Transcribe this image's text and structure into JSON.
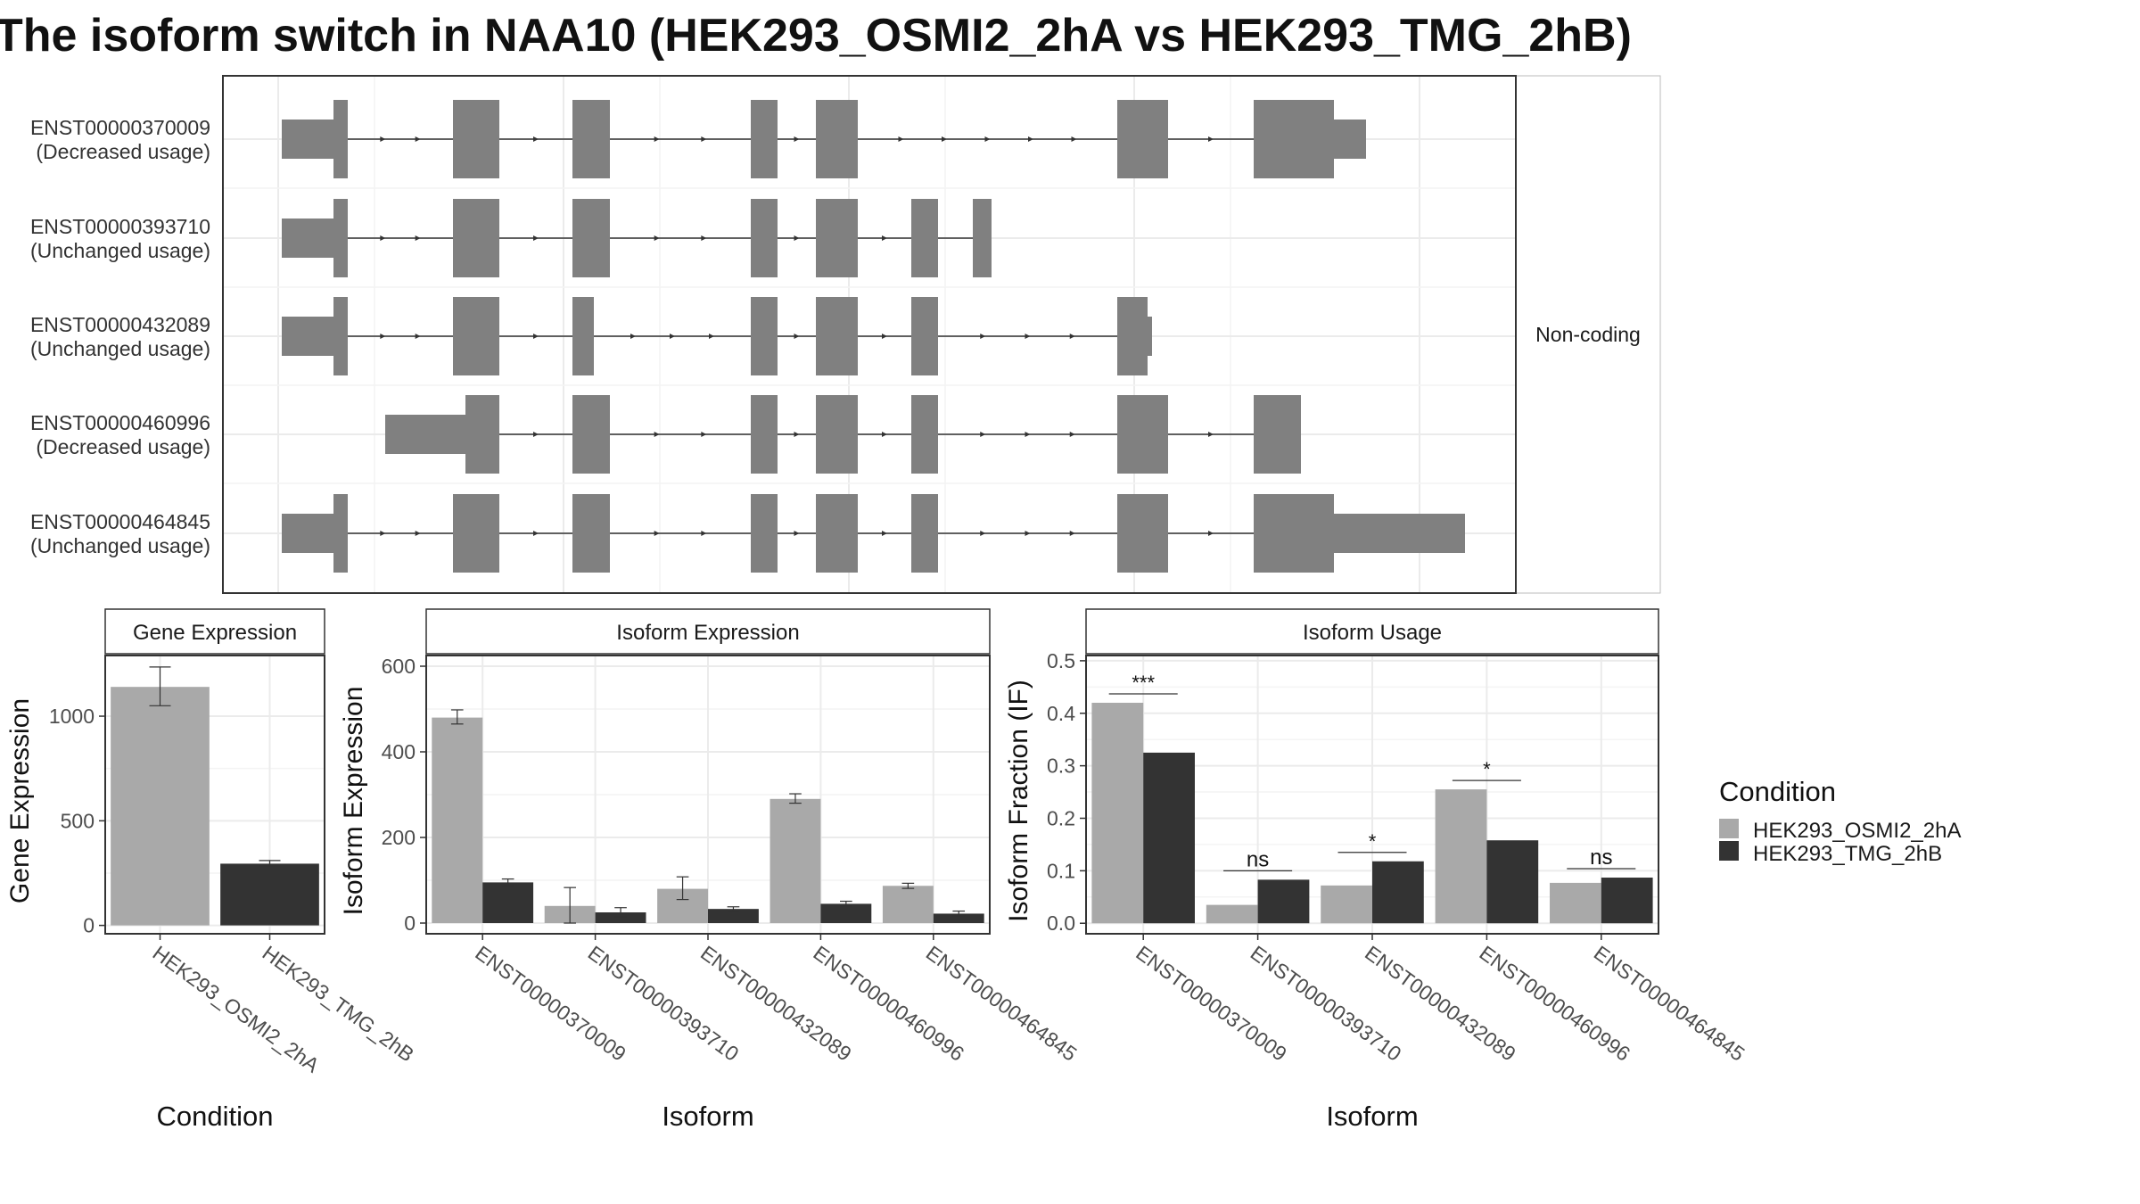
{
  "title": "The isoform switch in NAA10 (HEK293_OSMI2_2hA vs HEK293_TMG_2hB)",
  "colors": {
    "cond_a": "#a9a9a9",
    "cond_b": "#333333",
    "exon": "#808080",
    "grid": "#ebebeb",
    "panel_border": "#333333"
  },
  "chart_data": [
    {
      "type": "gene-structure",
      "strip_label": "Non-coding",
      "transcripts": [
        {
          "id": "ENST00000370009",
          "usage": "(Decreased usage)"
        },
        {
          "id": "ENST00000393710",
          "usage": "(Unchanged usage)"
        },
        {
          "id": "ENST00000432089",
          "usage": "(Unchanged usage)"
        },
        {
          "id": "ENST00000460996",
          "usage": "(Decreased usage)"
        },
        {
          "id": "ENST00000464845",
          "usage": "(Unchanged usage)"
        }
      ]
    },
    {
      "type": "bar",
      "title": "Gene Expression",
      "ylabel": "Gene Expression",
      "xlabel": "Condition",
      "ylim": [
        -40,
        1290
      ],
      "yticks": [
        0,
        500,
        1000
      ],
      "categories": [
        "HEK293_OSMI2_2hA",
        "HEK293_TMG_2hB"
      ],
      "values": [
        1140,
        295
      ],
      "errors": [
        [
          1050,
          1235
        ],
        [
          285,
          310
        ]
      ],
      "grid": true
    },
    {
      "type": "bar",
      "title": "Isoform Expression",
      "ylabel": "Isoform Expression",
      "xlabel": "Isoform",
      "ylim": [
        -25,
        625
      ],
      "yticks": [
        0,
        200,
        400,
        600
      ],
      "categories": [
        "ENST00000370009",
        "ENST00000393710",
        "ENST00000432089",
        "ENST00000460996",
        "ENST00000464845"
      ],
      "series": [
        {
          "name": "HEK293_OSMI2_2hA",
          "values": [
            480,
            40,
            80,
            290,
            87
          ],
          "errors": [
            [
              465,
              498
            ],
            [
              0,
              83
            ],
            [
              55,
              108
            ],
            [
              280,
              302
            ],
            [
              81,
              93
            ]
          ]
        },
        {
          "name": "HEK293_TMG_2hB",
          "values": [
            95,
            25,
            33,
            45,
            22
          ],
          "errors": [
            [
              88,
              103
            ],
            [
              15,
              36
            ],
            [
              28,
              38
            ],
            [
              40,
              51
            ],
            [
              17,
              28
            ]
          ]
        }
      ],
      "grid": true
    },
    {
      "type": "bar",
      "title": "Isoform Usage",
      "ylabel": "Isoform Fraction (IF)",
      "xlabel": "Isoform",
      "ylim": [
        -0.02,
        0.51
      ],
      "yticks": [
        0.0,
        0.1,
        0.2,
        0.3,
        0.4,
        0.5
      ],
      "ytick_labels": [
        "0.0",
        "0.1",
        "0.2",
        "0.3",
        "0.4",
        "0.5"
      ],
      "categories": [
        "ENST00000370009",
        "ENST00000393710",
        "ENST00000432089",
        "ENST00000460996",
        "ENST00000464845"
      ],
      "series": [
        {
          "name": "HEK293_OSMI2_2hA",
          "values": [
            0.42,
            0.035,
            0.072,
            0.255,
            0.077
          ]
        },
        {
          "name": "HEK293_TMG_2hB",
          "values": [
            0.325,
            0.083,
            0.118,
            0.158,
            0.087
          ]
        }
      ],
      "significance": [
        "***",
        "ns",
        "*",
        "*",
        "ns"
      ],
      "grid": true
    }
  ],
  "legend": {
    "title": "Condition",
    "placement": "right",
    "entries": [
      "HEK293_OSMI2_2hA",
      "HEK293_TMG_2hB"
    ]
  }
}
